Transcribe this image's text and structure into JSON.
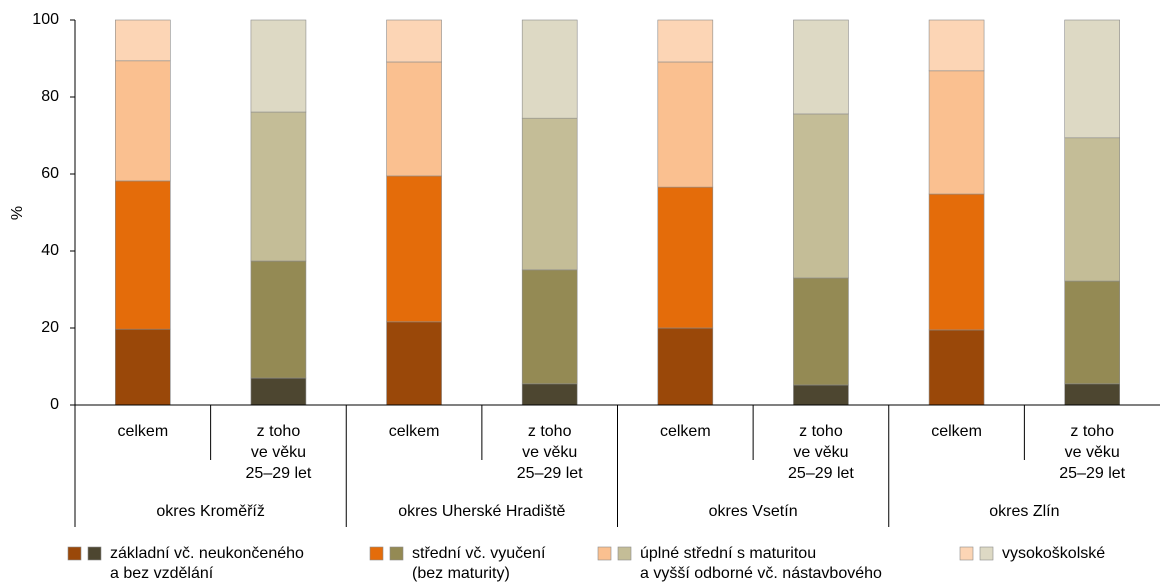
{
  "chart_data": {
    "type": "stacked_bar",
    "y_label": "%",
    "ylim": [
      0,
      100
    ],
    "yticks": [
      0,
      20,
      40,
      60,
      80,
      100
    ],
    "categories": [
      [
        "celkem"
      ],
      [
        "z toho",
        "ve věku",
        "25–29 let"
      ],
      [
        "celkem"
      ],
      [
        "z toho",
        "ve věku",
        "25–29 let"
      ],
      [
        "celkem"
      ],
      [
        "z toho",
        "ve věku",
        "25–29 let"
      ],
      [
        "celkem"
      ],
      [
        "z toho",
        "ve věku",
        "25–29 let"
      ]
    ],
    "groups": [
      "okres Kroměříž",
      "okres Uherské Hradiště",
      "okres Vsetín",
      "okres Zlín"
    ],
    "series": [
      {
        "name": [
          "základní vč. neukončeného",
          "a bez vzdělání"
        ],
        "colors": [
          "#9a4809",
          "#4d4630"
        ],
        "values": [
          19.7,
          7.0,
          21.6,
          5.5,
          20.0,
          5.2,
          19.5,
          5.5
        ]
      },
      {
        "name": [
          "střední vč. vyučení",
          "(bez maturity)"
        ],
        "colors": [
          "#e46c0a",
          "#948a54"
        ],
        "values": [
          38.5,
          30.4,
          37.9,
          29.6,
          36.6,
          27.8,
          35.3,
          26.7
        ]
      },
      {
        "name": [
          "úplné střední s maturitou",
          "a vyšší odborné vč. nástavbového"
        ],
        "colors": [
          "#fac090",
          "#c4bd97"
        ],
        "values": [
          31.2,
          38.7,
          29.6,
          39.4,
          32.5,
          42.6,
          32.0,
          37.2
        ]
      },
      {
        "name": [
          "vysokoškolské"
        ],
        "colors": [
          "#fcd5b5",
          "#ddd9c4"
        ],
        "values": [
          10.6,
          23.9,
          10.9,
          25.5,
          10.9,
          24.4,
          13.2,
          30.6
        ]
      }
    ]
  }
}
